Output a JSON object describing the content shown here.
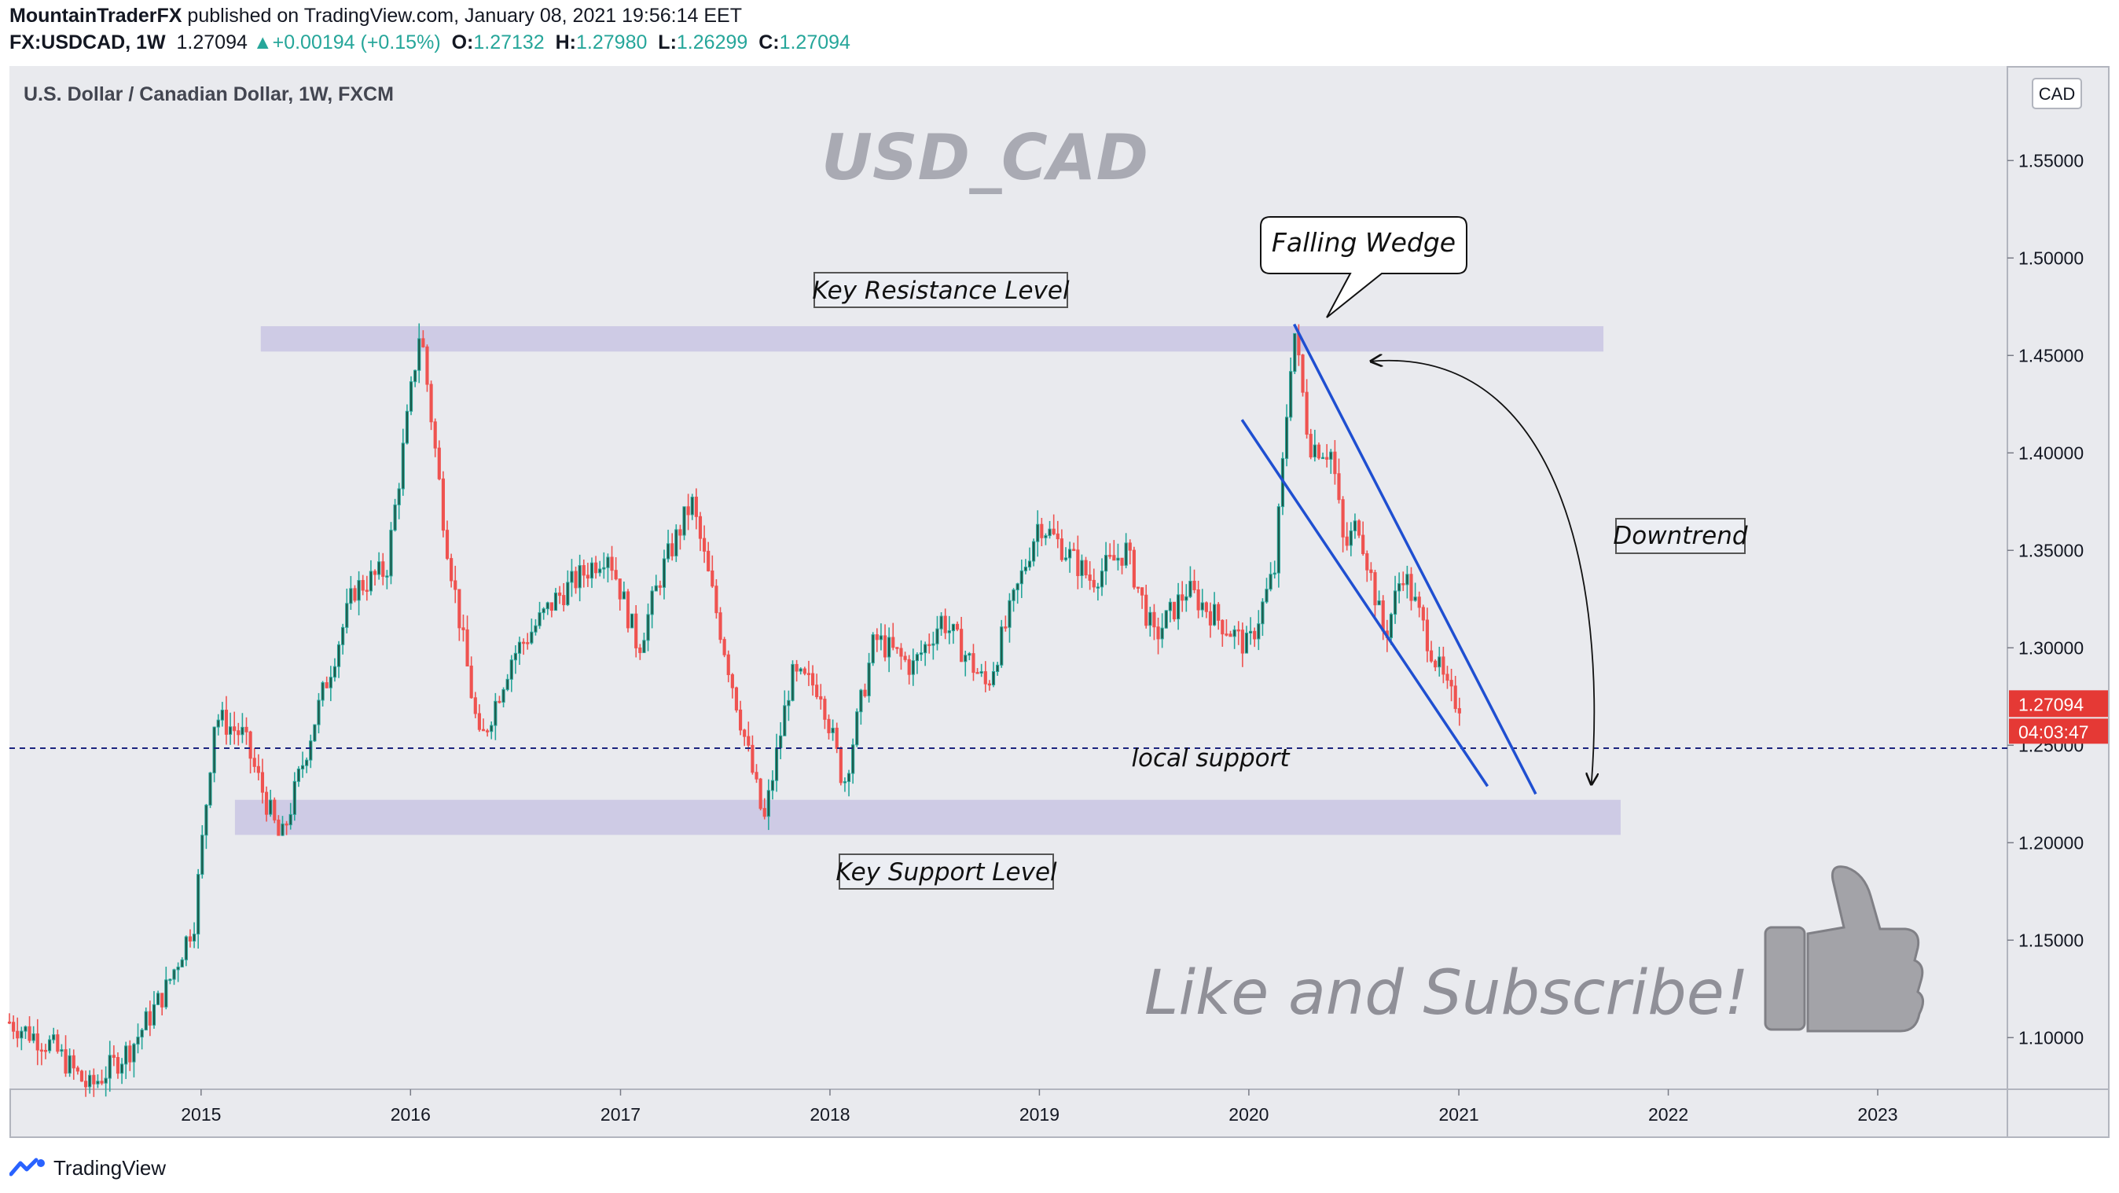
{
  "header": {
    "author": "MountainTraderFX",
    "published_text": "published on TradingView.com, January 08, 2021 19:56:14 EET",
    "symbol": "FX:USDCAD, 1W",
    "last": "1.27094",
    "change_arrow": "▲",
    "change": "+0.00194 (+0.15%)",
    "o_label": "O:",
    "o_value": "1.27132",
    "h_label": "H:",
    "h_value": "1.27980",
    "l_label": "L:",
    "l_value": "1.26299",
    "c_label": "C:",
    "c_value": "1.27094"
  },
  "footer": {
    "brand": "TradingView",
    "logo_icon": "tradingview-logo-icon"
  },
  "colors": {
    "up": "#26a69a",
    "down": "#ef5350",
    "up_body": "#1e5a4a",
    "zone": "#c9c5e3",
    "trendline": "#1f4fd1",
    "support_dash": "#1a237e",
    "price_label_bg": "#e53935",
    "watermark": "#9b9ba3",
    "pane_bg": "#e9eaee"
  },
  "chart_data": {
    "type": "candlestick",
    "title": "U.S. Dollar / Canadian Dollar, 1W, FXCM",
    "watermark": "USD_CAD",
    "currency_label": "CAD",
    "x_axis": {
      "type": "date",
      "range": [
        "2014-02-01",
        "2023-08-15"
      ],
      "tick_labels": [
        "2015",
        "2016",
        "2017",
        "2018",
        "2019",
        "2020",
        "2021",
        "2022",
        "2023"
      ]
    },
    "y_axis": {
      "range": [
        1.0735,
        1.5985
      ],
      "tick_labels": [
        "1.55000",
        "1.50000",
        "1.45000",
        "1.40000",
        "1.35000",
        "1.30000",
        "1.25000",
        "1.20000",
        "1.15000",
        "1.10000"
      ]
    },
    "last_price": {
      "value": 1.27094,
      "label": "1.27094",
      "countdown": "04:03:47"
    },
    "grid": false,
    "price_path": [
      [
        "2014-02-01",
        1.108
      ],
      [
        "2014-04-15",
        1.096
      ],
      [
        "2014-06-20",
        1.074
      ],
      [
        "2014-09-01",
        1.095
      ],
      [
        "2014-11-01",
        1.125
      ],
      [
        "2014-12-20",
        1.16
      ],
      [
        "2015-01-25",
        1.265
      ],
      [
        "2015-03-15",
        1.255
      ],
      [
        "2015-05-20",
        1.2
      ],
      [
        "2015-07-15",
        1.26
      ],
      [
        "2015-09-25",
        1.33
      ],
      [
        "2015-11-20",
        1.34
      ],
      [
        "2016-01-18",
        1.465
      ],
      [
        "2016-03-01",
        1.36
      ],
      [
        "2016-05-01",
        1.25
      ],
      [
        "2016-06-25",
        1.295
      ],
      [
        "2016-09-10",
        1.325
      ],
      [
        "2016-12-10",
        1.35
      ],
      [
        "2017-02-01",
        1.3
      ],
      [
        "2017-03-15",
        1.34
      ],
      [
        "2017-05-05",
        1.375
      ],
      [
        "2017-07-01",
        1.3
      ],
      [
        "2017-09-08",
        1.21
      ],
      [
        "2017-10-25",
        1.285
      ],
      [
        "2017-12-15",
        1.28
      ],
      [
        "2018-01-25",
        1.23
      ],
      [
        "2018-03-20",
        1.305
      ],
      [
        "2018-05-25",
        1.29
      ],
      [
        "2018-07-15",
        1.315
      ],
      [
        "2018-10-01",
        1.28
      ],
      [
        "2018-12-31",
        1.365
      ],
      [
        "2019-04-01",
        1.335
      ],
      [
        "2019-06-01",
        1.35
      ],
      [
        "2019-07-20",
        1.305
      ],
      [
        "2019-09-15",
        1.33
      ],
      [
        "2019-12-31",
        1.3
      ],
      [
        "2020-02-15",
        1.34
      ],
      [
        "2020-03-19",
        1.466
      ],
      [
        "2020-04-15",
        1.405
      ],
      [
        "2020-05-25",
        1.4
      ],
      [
        "2020-06-15",
        1.35
      ],
      [
        "2020-07-10",
        1.365
      ],
      [
        "2020-08-25",
        1.305
      ],
      [
        "2020-09-25",
        1.34
      ],
      [
        "2020-11-01",
        1.31
      ],
      [
        "2020-12-15",
        1.275
      ],
      [
        "2021-01-08",
        1.271
      ]
    ]
  },
  "annotations": {
    "resistance_label": "Key Resistance  Level",
    "support_label": "Key Support Level",
    "wedge_label": "Falling Wedge",
    "downtrend_label": "Downtrend",
    "local_support_label": "local support",
    "cta": "Like and Subscribe!",
    "cta_icon": "thumbs-up-icon"
  },
  "zones": {
    "resistance": {
      "from": "2015-04-15",
      "to": "2021-09-10",
      "top": 1.465,
      "bottom": 1.452
    },
    "support": {
      "from": "2015-03-01",
      "to": "2021-10-10",
      "top": 1.222,
      "bottom": 1.204
    }
  },
  "local_support_level": 1.2485,
  "wedge_lines": [
    [
      [
        "2019-12-20",
        1.417
      ],
      [
        "2021-02-20",
        1.229
      ]
    ],
    [
      [
        "2020-03-20",
        1.466
      ],
      [
        "2021-05-15",
        1.225
      ]
    ]
  ],
  "downtrend_arc": {
    "from": [
      "2020-08-01",
      1.447
    ],
    "to": [
      "2021-08-20",
      1.23
    ]
  }
}
